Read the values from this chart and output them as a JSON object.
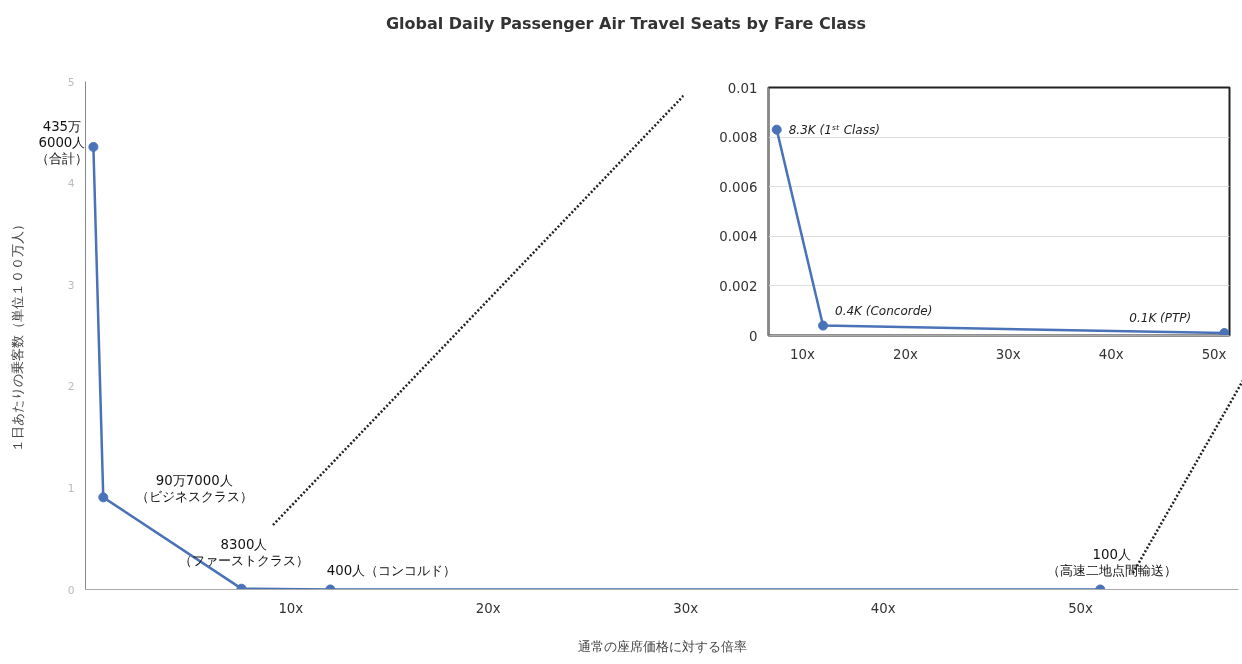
{
  "chart_data": [
    {
      "type": "line",
      "title": "Global Daily Passenger Air Travel Seats by Fare Class",
      "xlabel": "通常の座席価格に対する倍率",
      "ylabel": "１日あたりの乗客数（単位１００万人）",
      "x": [
        0,
        0.5,
        7.5,
        12,
        51
      ],
      "series": [
        {
          "color": "#4a72b8",
          "values": [
            4.356,
            0.907,
            0.0083,
            0.0004,
            0.0001
          ]
        }
      ],
      "xlim": [
        -0.4,
        58
      ],
      "ylim": [
        0,
        5
      ],
      "yticks": [
        0,
        1,
        2,
        3,
        4,
        5
      ],
      "xticks": [
        {
          "value": 10,
          "label": "10x"
        },
        {
          "value": 20,
          "label": "20x"
        },
        {
          "value": 30,
          "label": "30x"
        },
        {
          "value": 40,
          "label": "40x"
        },
        {
          "value": 50,
          "label": "50x"
        }
      ],
      "marker": "circle",
      "grid": false,
      "annotations": [
        {
          "text": "435万6000人（合計）",
          "x": 0,
          "y": 4.356
        },
        {
          "text": "90万7000人（ビジネスクラス）",
          "x": 0.5,
          "y": 0.907
        },
        {
          "text": "8300人（ファーストクラス）",
          "x": 7.5,
          "y": 0.0083
        },
        {
          "text": "400人（コンコルド）",
          "x": 12,
          "y": 0.0004
        },
        {
          "text": "100人（高速二地点間輸送）",
          "x": 51,
          "y": 0.0001
        }
      ]
    },
    {
      "type": "line",
      "x": [
        7.5,
        12,
        51
      ],
      "series": [
        {
          "color": "#4a72b8",
          "values": [
            0.0083,
            0.0004,
            0.0001
          ]
        }
      ],
      "xlim": [
        6.7,
        51.5
      ],
      "ylim": [
        0,
        0.01
      ],
      "yticks": [
        0,
        0.002,
        0.004,
        0.006,
        0.008,
        0.01
      ],
      "xticks": [
        {
          "value": 10,
          "label": "10x"
        },
        {
          "value": 20,
          "label": "20x"
        },
        {
          "value": 30,
          "label": "30x"
        },
        {
          "value": 40,
          "label": "40x"
        },
        {
          "value": 50,
          "label": "50x"
        }
      ],
      "marker": "circle",
      "grid": "y",
      "annotations": [
        {
          "text": "8.3K (1ˢᵗ Class)",
          "x": 7.5,
          "y": 0.0083
        },
        {
          "text": "0.4K (Concorde)",
          "x": 12,
          "y": 0.0004
        },
        {
          "text": "0.1K (PTP)",
          "x": 51,
          "y": 0.0001
        }
      ]
    }
  ]
}
